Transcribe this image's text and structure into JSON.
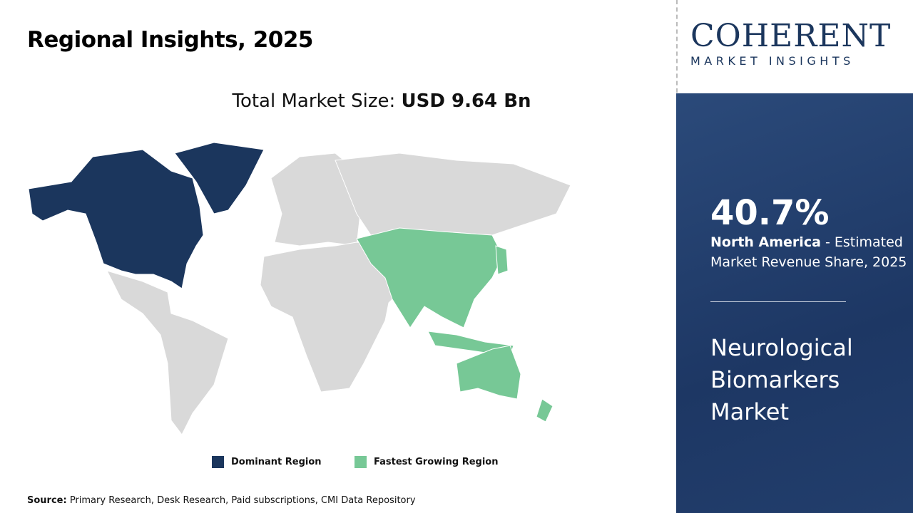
{
  "title": "Regional Insights, 2025",
  "total": {
    "label": "Total Market Size: ",
    "value": "USD 9.64 Bn"
  },
  "legend": [
    {
      "label": "Dominant Region",
      "color": "#1b365d"
    },
    {
      "label": "Fastest Growing Region",
      "color": "#77c896"
    }
  ],
  "map": {
    "dominant_region": "North America",
    "fastest_growing_region": "Asia Pacific",
    "other_color": "#d9d9d9"
  },
  "source": {
    "label": "Source:",
    "text": " Primary Research, Desk Research, Paid subscriptions, CMI Data Repository"
  },
  "logo": {
    "line1": "COHERENT",
    "line2": "MARKET INSIGHTS"
  },
  "panel": {
    "percent": "40.7%",
    "region": "North America",
    "desc": " - Estimated Market Revenue Share, 2025",
    "market": "Neurological Biomarkers Market"
  }
}
